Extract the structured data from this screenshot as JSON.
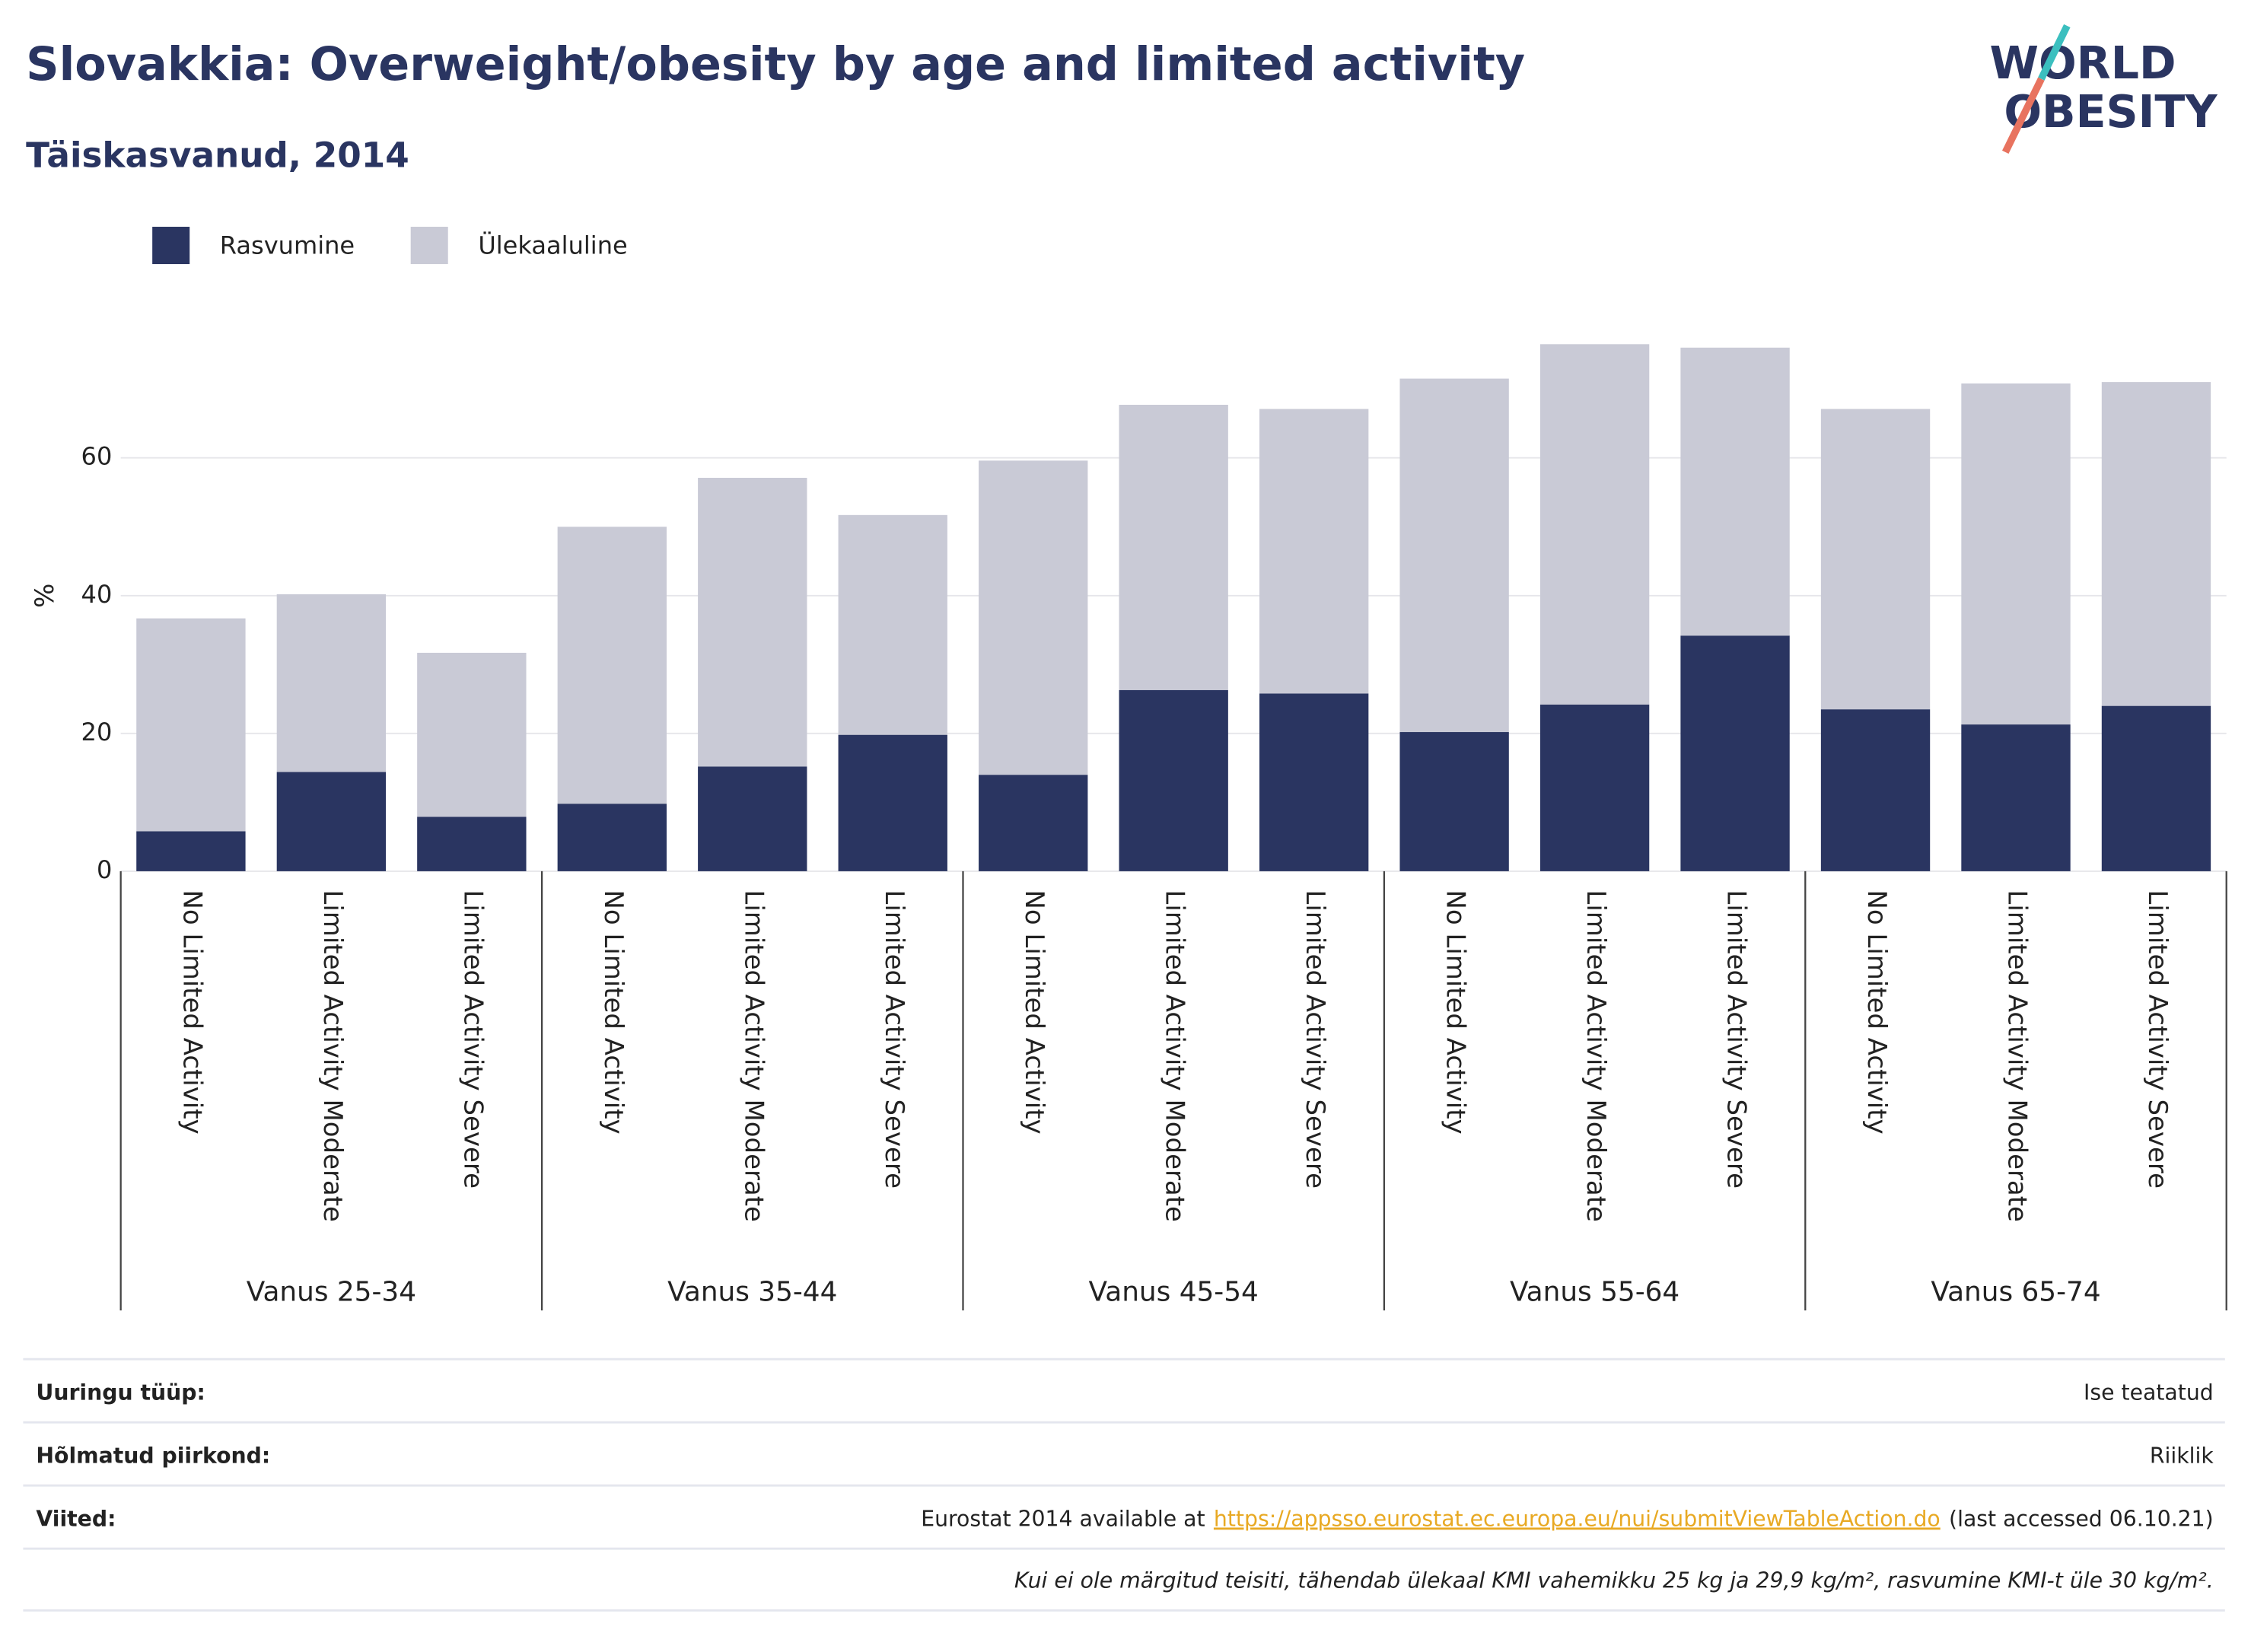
{
  "chart_data": {
    "type": "bar",
    "stacked": true,
    "title": "Slovakkia: Overweight/obesity by age and limited activity",
    "subtitle": "Täiskasvanud, 2014",
    "y_label": "%",
    "categories": [
      "No Limited Activity",
      "Limited Activity Moderate",
      "Limited Activity Severe",
      "No Limited Activity",
      "Limited Activity Moderate",
      "Limited Activity Severe",
      "No Limited Activity",
      "Limited Activity Moderate",
      "Limited Activity Severe",
      "No Limited Activity",
      "Limited Activity Moderate",
      "Limited Activity Severe",
      "No Limited Activity",
      "Limited Activity Moderate",
      "Limited Activity Severe"
    ],
    "groups": [
      "Vanus 25-34",
      "Vanus 35-44",
      "Vanus 45-54",
      "Vanus 55-64",
      "Vanus 65-74"
    ],
    "series": [
      {
        "name": "Rasvumine",
        "color": "#2a3561",
        "values": [
          5.8,
          14.4,
          7.9,
          9.8,
          15.2,
          19.8,
          14.0,
          26.3,
          25.8,
          20.2,
          24.2,
          34.2,
          23.5,
          21.3,
          24.0
        ]
      },
      {
        "name": "Ülekaaluline",
        "color": "#c9cad6",
        "values": [
          30.9,
          25.8,
          23.8,
          40.2,
          41.9,
          31.9,
          45.6,
          41.4,
          41.3,
          51.3,
          52.3,
          41.8,
          43.6,
          49.5,
          47.0
        ]
      }
    ],
    "ylim": [
      0,
      80
    ],
    "yticks": [
      0,
      20,
      40,
      60
    ],
    "grid": true,
    "legend": "top-left"
  },
  "logo": [
    "WORLD",
    "OBESITY"
  ],
  "info": {
    "rows": [
      {
        "label": "Uuringu tüüp:",
        "value": "Ise teatatud"
      },
      {
        "label": "Hõlmatud piirkond:",
        "value": "Riiklik"
      },
      {
        "label": "Viited:",
        "value_before": "Eurostat 2014 available at",
        "link": "https://appsso.eurostat.ec.europa.eu/nui/submitViewTableAction.do",
        "value_after": "(last accessed 06.10.21)"
      }
    ],
    "footnote": "Kui ei ole märgitud teisiti, tähendab ülekaal KMI vahemikku 25 kg ja 29,9 kg/m², rasvumine KMI-t üle 30 kg/m²."
  }
}
